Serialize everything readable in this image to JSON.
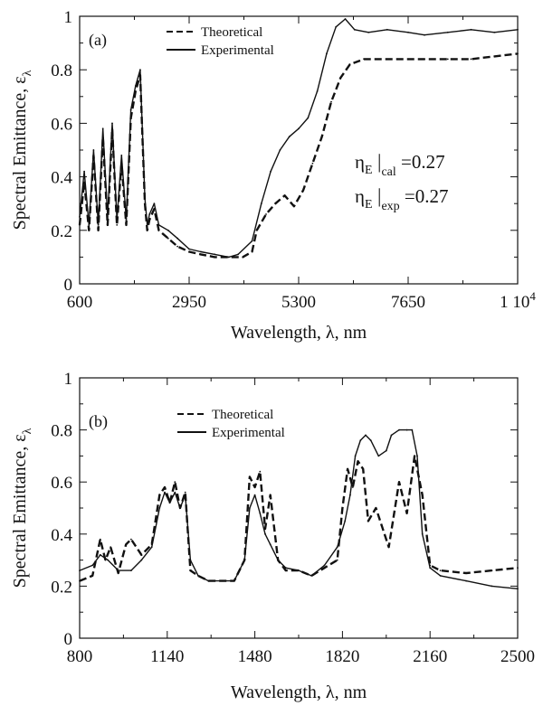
{
  "chart_data": [
    {
      "type": "line",
      "panel_label": "(a)",
      "xlabel": "Wavelength, λ, nm",
      "ylabel": "Spectral Emittance, ε",
      "ylabel_sub": "λ",
      "xlim": [
        600,
        10000
      ],
      "ylim": [
        0,
        1
      ],
      "x_ticks": [
        "600",
        "2950",
        "5300",
        "7650",
        "1 10"
      ],
      "x_tick_last_sup": "4",
      "y_ticks": [
        "0",
        "0.2",
        "0.4",
        "0.6",
        "0.8",
        "1"
      ],
      "legend": {
        "placement": "top-left",
        "entries": [
          "Theoretical",
          "Experimental"
        ]
      },
      "annotations": [
        {
          "symbol": "η",
          "sub": "E",
          "bar": "|",
          "bar_sub": "cal",
          "value": "=0.27"
        },
        {
          "symbol": "η",
          "sub": "E",
          "bar": "|",
          "bar_sub": "exp",
          "value": "=0.27"
        }
      ],
      "series": [
        {
          "name": "Theoretical",
          "style": "dashed",
          "x": [
            600,
            700,
            800,
            900,
            1000,
            1100,
            1200,
            1300,
            1400,
            1500,
            1600,
            1700,
            1800,
            1900,
            2000,
            2050,
            2100,
            2200,
            2300,
            2500,
            2700,
            2950,
            3200,
            3500,
            3800,
            4100,
            4300,
            4400,
            4600,
            4800,
            5000,
            5200,
            5400,
            5600,
            5800,
            6000,
            6200,
            6400,
            6700,
            7000,
            7650,
            8000,
            8500,
            9000,
            9500,
            10000
          ],
          "y": [
            0.22,
            0.38,
            0.2,
            0.48,
            0.2,
            0.55,
            0.22,
            0.58,
            0.22,
            0.45,
            0.22,
            0.62,
            0.72,
            0.78,
            0.3,
            0.2,
            0.24,
            0.28,
            0.2,
            0.17,
            0.14,
            0.12,
            0.11,
            0.1,
            0.1,
            0.1,
            0.12,
            0.2,
            0.26,
            0.3,
            0.33,
            0.29,
            0.35,
            0.45,
            0.55,
            0.68,
            0.77,
            0.82,
            0.84,
            0.84,
            0.84,
            0.84,
            0.84,
            0.84,
            0.85,
            0.86
          ]
        },
        {
          "name": "Experimental",
          "style": "solid",
          "x": [
            600,
            700,
            800,
            900,
            1000,
            1100,
            1200,
            1300,
            1400,
            1500,
            1600,
            1700,
            1800,
            1900,
            2000,
            2050,
            2100,
            2200,
            2300,
            2500,
            2700,
            2950,
            3200,
            3500,
            3800,
            4000,
            4300,
            4500,
            4700,
            4900,
            5100,
            5300,
            5500,
            5700,
            5900,
            6100,
            6300,
            6500,
            6800,
            7200,
            7650,
            8000,
            8500,
            9000,
            9500,
            10000
          ],
          "y": [
            0.25,
            0.42,
            0.22,
            0.5,
            0.22,
            0.58,
            0.25,
            0.6,
            0.24,
            0.48,
            0.24,
            0.65,
            0.74,
            0.8,
            0.32,
            0.22,
            0.26,
            0.3,
            0.22,
            0.2,
            0.17,
            0.13,
            0.12,
            0.11,
            0.1,
            0.11,
            0.16,
            0.3,
            0.42,
            0.5,
            0.55,
            0.58,
            0.62,
            0.72,
            0.86,
            0.96,
            0.99,
            0.95,
            0.94,
            0.95,
            0.94,
            0.93,
            0.94,
            0.95,
            0.94,
            0.95
          ]
        }
      ]
    },
    {
      "type": "line",
      "panel_label": "(b)",
      "xlabel": "Wavelength, λ, nm",
      "ylabel": "Spectral Emittance, ε",
      "ylabel_sub": "λ",
      "xlim": [
        800,
        2500
      ],
      "ylim": [
        0,
        1
      ],
      "x_ticks": [
        "800",
        "1140",
        "1480",
        "1820",
        "2160",
        "2500"
      ],
      "y_ticks": [
        "0",
        "0.2",
        "0.4",
        "0.6",
        "0.8",
        "1"
      ],
      "legend": {
        "placement": "top-left",
        "entries": [
          "Theoretical",
          "Experimental"
        ]
      },
      "series": [
        {
          "name": "Theoretical",
          "style": "dashed",
          "x": [
            800,
            850,
            880,
            900,
            920,
            950,
            980,
            1000,
            1040,
            1080,
            1110,
            1130,
            1150,
            1170,
            1190,
            1210,
            1230,
            1260,
            1300,
            1350,
            1400,
            1440,
            1460,
            1480,
            1500,
            1520,
            1540,
            1570,
            1600,
            1650,
            1700,
            1750,
            1800,
            1820,
            1840,
            1860,
            1880,
            1900,
            1920,
            1950,
            2000,
            2040,
            2070,
            2100,
            2130,
            2160,
            2200,
            2300,
            2400,
            2500
          ],
          "y": [
            0.22,
            0.24,
            0.38,
            0.3,
            0.35,
            0.25,
            0.36,
            0.38,
            0.32,
            0.36,
            0.55,
            0.58,
            0.52,
            0.6,
            0.5,
            0.56,
            0.26,
            0.24,
            0.22,
            0.22,
            0.22,
            0.3,
            0.62,
            0.58,
            0.64,
            0.42,
            0.55,
            0.3,
            0.26,
            0.26,
            0.24,
            0.27,
            0.3,
            0.5,
            0.65,
            0.58,
            0.68,
            0.65,
            0.45,
            0.5,
            0.35,
            0.6,
            0.48,
            0.7,
            0.55,
            0.28,
            0.26,
            0.25,
            0.26,
            0.27
          ]
        },
        {
          "name": "Experimental",
          "style": "solid",
          "x": [
            800,
            850,
            880,
            910,
            950,
            1000,
            1040,
            1080,
            1110,
            1130,
            1150,
            1170,
            1190,
            1210,
            1230,
            1260,
            1300,
            1350,
            1400,
            1440,
            1460,
            1480,
            1500,
            1520,
            1540,
            1570,
            1600,
            1650,
            1700,
            1750,
            1800,
            1830,
            1850,
            1870,
            1890,
            1910,
            1930,
            1960,
            1990,
            2010,
            2040,
            2070,
            2090,
            2110,
            2130,
            2160,
            2200,
            2300,
            2400,
            2500
          ],
          "y": [
            0.26,
            0.28,
            0.32,
            0.3,
            0.26,
            0.26,
            0.3,
            0.35,
            0.5,
            0.56,
            0.52,
            0.56,
            0.5,
            0.55,
            0.3,
            0.24,
            0.22,
            0.22,
            0.22,
            0.3,
            0.5,
            0.55,
            0.48,
            0.4,
            0.36,
            0.3,
            0.27,
            0.26,
            0.24,
            0.28,
            0.35,
            0.45,
            0.55,
            0.7,
            0.76,
            0.78,
            0.76,
            0.7,
            0.72,
            0.78,
            0.8,
            0.8,
            0.8,
            0.7,
            0.4,
            0.27,
            0.24,
            0.22,
            0.2,
            0.19
          ]
        }
      ]
    }
  ]
}
